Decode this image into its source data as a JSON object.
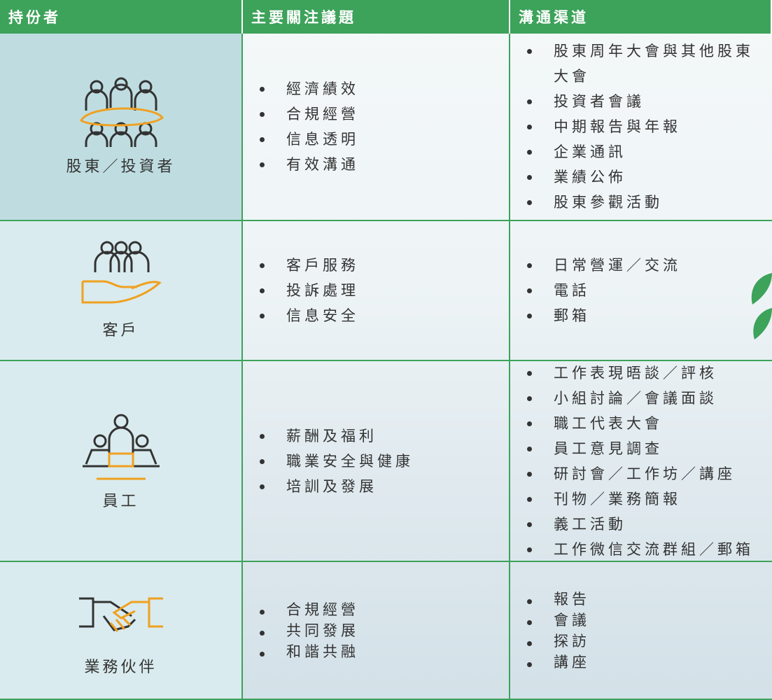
{
  "header": [
    "持份者",
    "主要關注議題",
    "溝通渠道"
  ],
  "rows": [
    {
      "stakeholder": "股東／投資者",
      "concerns": [
        "經濟績效",
        "合規經營",
        "信息透明",
        "有效溝通"
      ],
      "channels": [
        "股東周年大會與其他股東大會",
        "投資者會議",
        "中期報告與年報",
        "企業通訊",
        "業績公佈",
        "股東參觀活動"
      ]
    },
    {
      "stakeholder": "客戶",
      "concerns": [
        "客戶服務",
        "投訴處理",
        "信息安全"
      ],
      "channels": [
        "日常營運／交流",
        "電話",
        "郵箱"
      ]
    },
    {
      "stakeholder": "員工",
      "concerns": [
        "薪酬及福利",
        "職業安全與健康",
        "培訓及發展"
      ],
      "channels": [
        "工作表現晤談／評核",
        "小組討論／會議面談",
        "職工代表大會",
        "員工意見調查",
        "研討會／工作坊／講座",
        "刊物／業務簡報",
        "義工活動",
        "工作微信交流群組／郵箱"
      ]
    },
    {
      "stakeholder": "業務伙伴",
      "concerns": [
        "合規經營",
        "共同發展",
        "和諧共融"
      ],
      "channels": [
        "報告",
        "會議",
        "探訪",
        "講座"
      ]
    }
  ]
}
